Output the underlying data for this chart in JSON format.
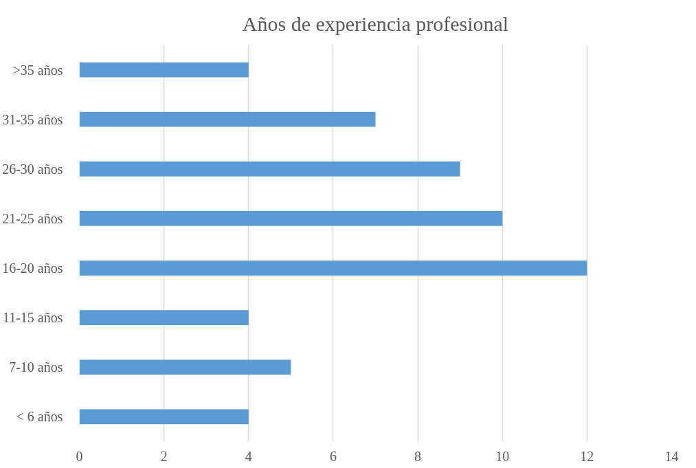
{
  "chart_data": {
    "type": "bar",
    "orientation": "horizontal",
    "title": "Años de experiencia profesional",
    "categories": [
      ">35 años",
      "31-35 años",
      "26-30 años",
      "21-25 años",
      "16-20 años",
      "11-15 años",
      "7-10 años",
      "< 6 años"
    ],
    "values": [
      4,
      7,
      9,
      10,
      12,
      4,
      5,
      4
    ],
    "color": "#5b9bd5",
    "xlim": [
      0,
      14
    ],
    "xticks": [
      0,
      2,
      4,
      6,
      8,
      10,
      12,
      14
    ],
    "grid": "x"
  }
}
